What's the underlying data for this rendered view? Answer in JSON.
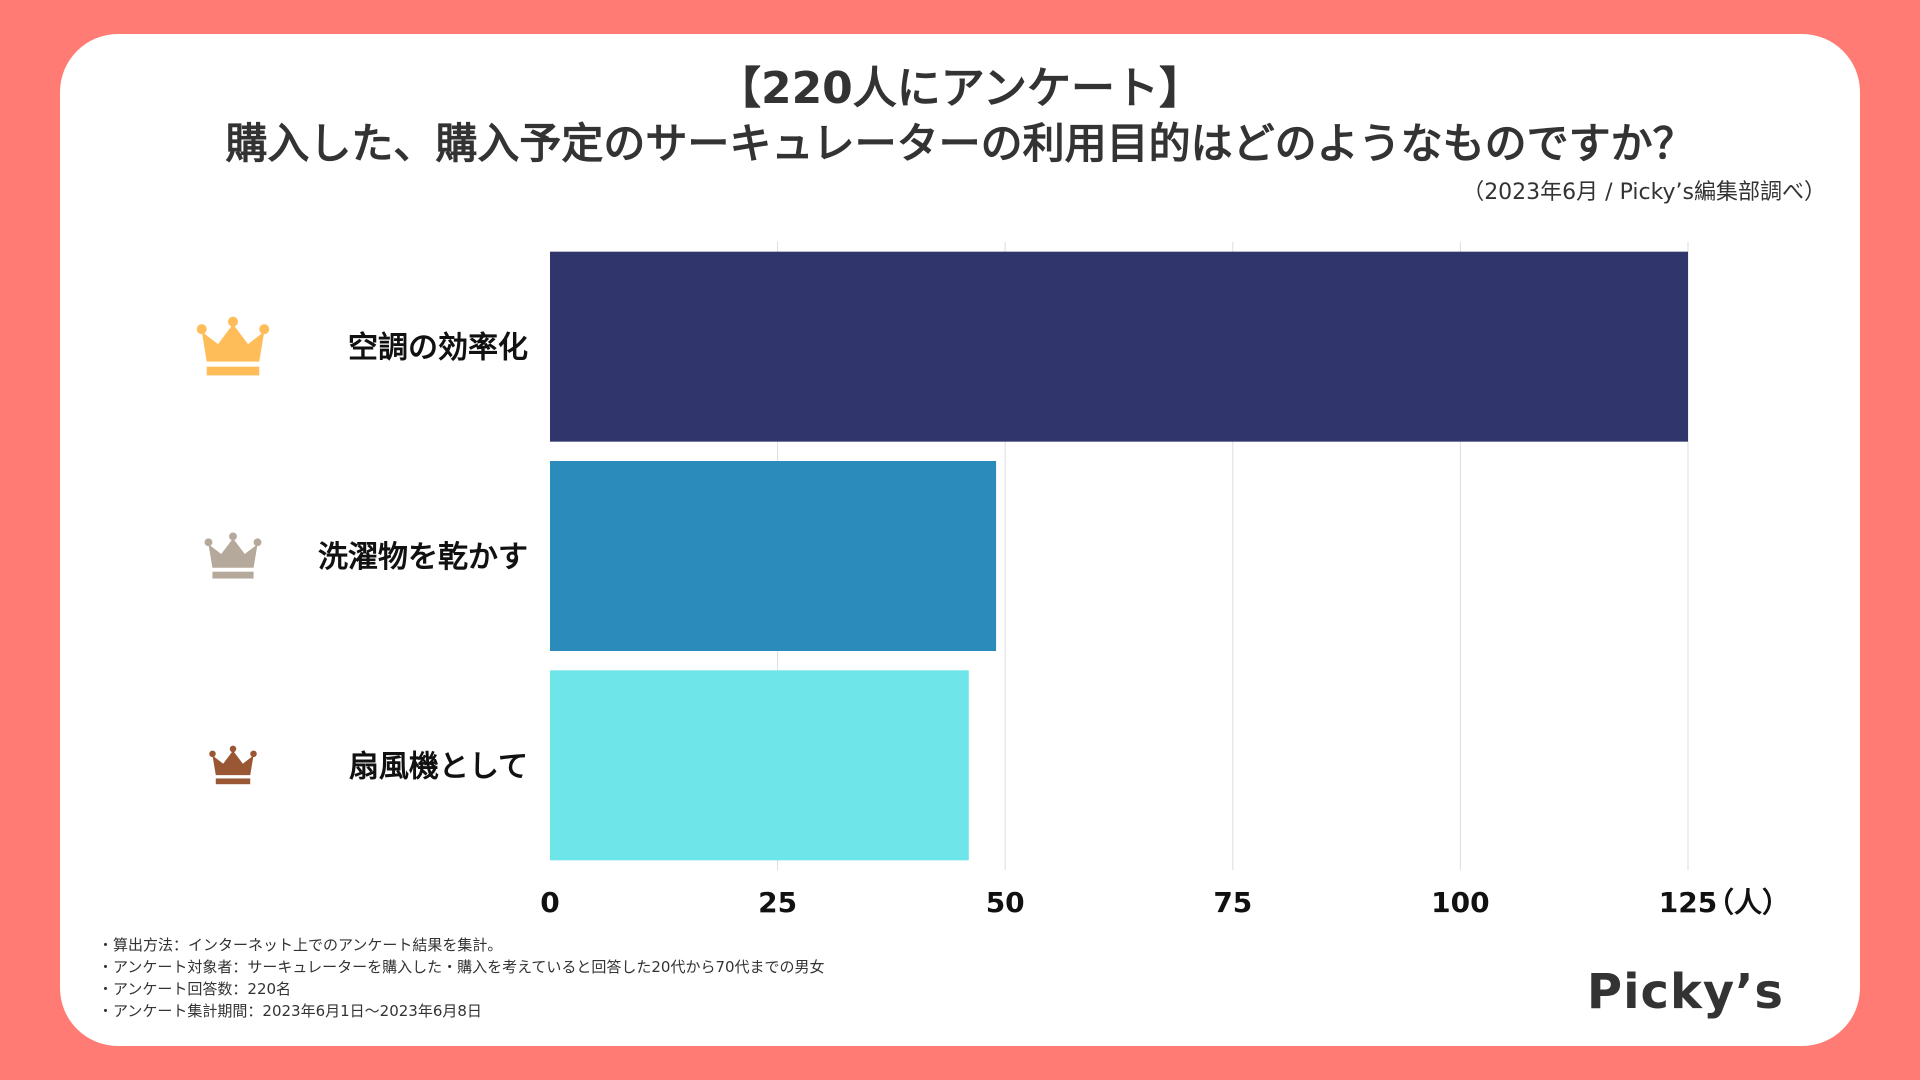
{
  "header": {
    "title_line1": "【220人にアンケート】",
    "title_line2": "購入した、購入予定のサーキュレーターの利用目的はどのようなものですか？",
    "source": "（2023年6月 / Picky’s編集部調べ）"
  },
  "chart_data": {
    "type": "bar",
    "orientation": "horizontal",
    "categories": [
      "空調の効率化",
      "洗濯物を乾かす",
      "扇風機として"
    ],
    "values": [
      125,
      49,
      46
    ],
    "bar_colors": [
      "#30356b",
      "#2b8bba",
      "#6de5e9"
    ],
    "crown_colors": [
      "#ffbd5a",
      "#b5a99c",
      "#9a5733"
    ],
    "crown_icons": [
      "gold-crown-icon",
      "silver-crown-icon",
      "bronze-crown-icon"
    ],
    "xlim": [
      0,
      125
    ],
    "xticks": [
      0,
      25,
      50,
      75,
      100,
      125
    ],
    "xunit": "（人）",
    "grid": true
  },
  "notes": [
    "・算出方法：インターネット上でのアンケート結果を集計。",
    "・アンケート対象者：サーキュレーターを購入した・購入を考えていると回答した20代から70代までの男女",
    "・アンケート回答数：220名",
    "・アンケート集計期間：2023年6月1日〜2023年6月8日"
  ],
  "brand": {
    "logo_text": "Picky’s"
  }
}
